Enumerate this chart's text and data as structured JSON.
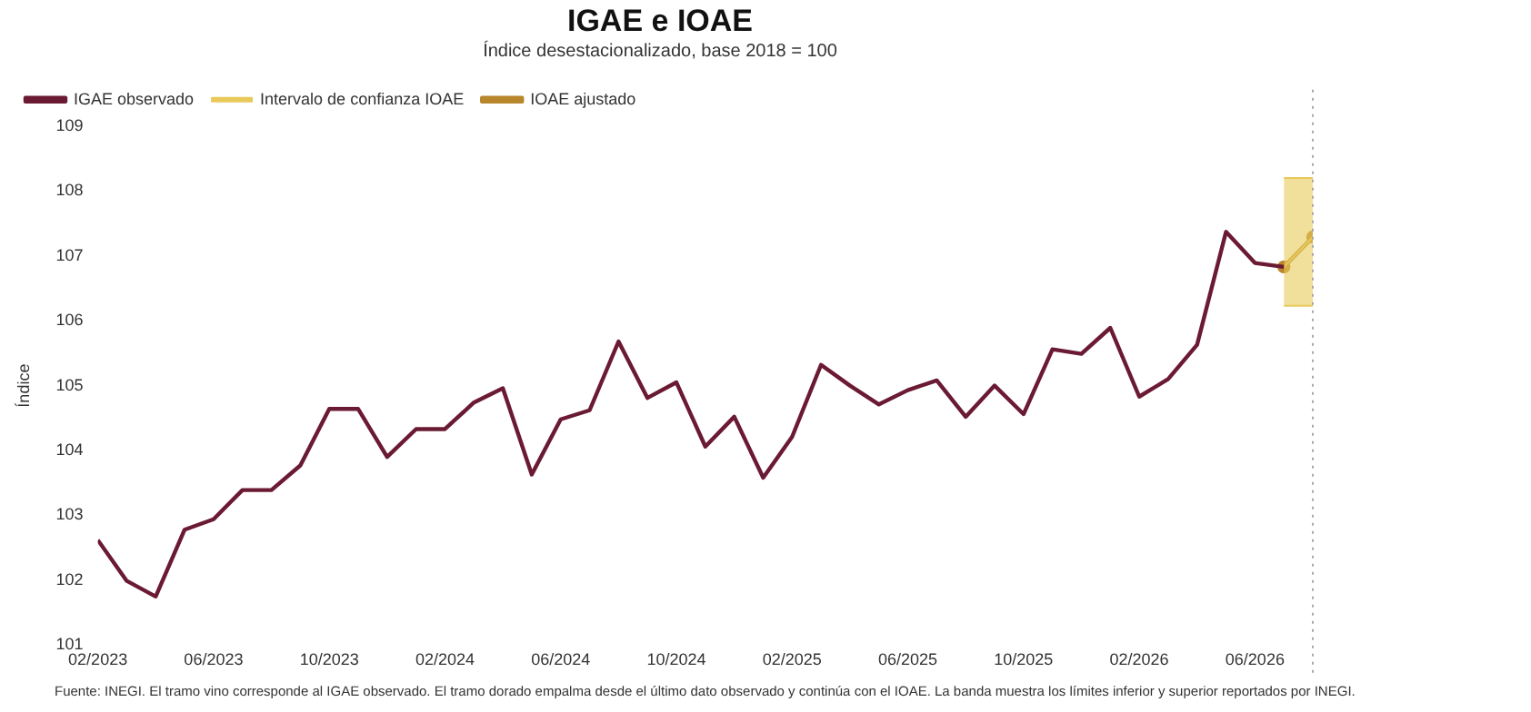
{
  "chart_data": {
    "type": "line",
    "title": "IGAE e IOAE",
    "subtitle": "Índice desestacionalizado, base 2018 = 100",
    "ylabel": "Índice",
    "x": [
      "2023-02",
      "2023-03",
      "2023-04",
      "2023-05",
      "2023-06",
      "2023-07",
      "2023-08",
      "2023-09",
      "2023-10",
      "2023-11",
      "2023-12",
      "2024-01",
      "2024-02",
      "2024-03",
      "2024-04",
      "2024-05",
      "2024-06",
      "2024-07",
      "2024-08",
      "2024-09",
      "2024-10",
      "2024-11",
      "2024-12",
      "2025-01",
      "2025-02",
      "2025-03",
      "2025-04",
      "2025-05",
      "2025-06",
      "2025-07",
      "2025-08",
      "2025-09",
      "2025-10",
      "2025-11",
      "2025-12",
      "2026-01",
      "2026-02",
      "2026-03",
      "2026-04",
      "2026-05",
      "2026-06",
      "2026-07"
    ],
    "series": [
      {
        "name": "IGAE observado",
        "color": "#6b1a33",
        "values": [
          102.62,
          101.99,
          101.75,
          102.78,
          102.94,
          103.39,
          103.39,
          103.77,
          104.64,
          104.64,
          103.9,
          104.33,
          104.33,
          104.74,
          104.96,
          103.63,
          104.48,
          104.62,
          105.68,
          104.81,
          105.05,
          104.06,
          104.52,
          103.58,
          104.21,
          105.32,
          105.0,
          104.71,
          104.93,
          105.08,
          104.52,
          105.0,
          104.56,
          105.56,
          105.49,
          105.89,
          104.83,
          105.1,
          105.63,
          107.37,
          106.89,
          106.83
        ]
      },
      {
        "name": "Intervalo de confianza IOAE",
        "type": "line",
        "color": "#e8c95a",
        "x": [
          "2026-07",
          "2026-08"
        ],
        "values": [
          106.83,
          107.29
        ],
        "lower": [
          106.23,
          106.23
        ],
        "upper": [
          108.2,
          108.2
        ]
      },
      {
        "name": "IOAE ajustado",
        "color": "#b8862b",
        "marker": "circle",
        "x": [
          "2026-07",
          "2026-08"
        ],
        "values": [
          106.83,
          107.29
        ]
      }
    ],
    "xlim": [
      "2023-02",
      "2026-08"
    ],
    "xticks": [
      {
        "value": "2023-02",
        "label": "02/2023"
      },
      {
        "value": "2023-06",
        "label": "06/2023"
      },
      {
        "value": "2023-10",
        "label": "10/2023"
      },
      {
        "value": "2024-02",
        "label": "02/2024"
      },
      {
        "value": "2024-06",
        "label": "06/2024"
      },
      {
        "value": "2024-10",
        "label": "10/2024"
      },
      {
        "value": "2025-02",
        "label": "02/2025"
      },
      {
        "value": "2025-06",
        "label": "06/2025"
      },
      {
        "value": "2025-10",
        "label": "10/2025"
      },
      {
        "value": "2026-02",
        "label": "02/2026"
      },
      {
        "value": "2026-06",
        "label": "06/2026"
      }
    ],
    "ylim": [
      101,
      109
    ],
    "yticks": [
      101,
      102,
      103,
      104,
      105,
      106,
      107,
      108,
      109
    ],
    "ref_lines": [
      {
        "axis": "x",
        "value": "2026-08",
        "color": "#aaaaaa",
        "line_style": "dotted"
      }
    ],
    "grid": false,
    "legend": "top left",
    "marker": "none",
    "line_style": "solid",
    "annotations": [
      "Fuente: INEGI. El tramo vino corresponde al IGAE observado. El tramo dorado empalma desde el último dato observado y continúa con el IOAE. La banda muestra los límites inferior y superior reportados por INEGI."
    ]
  }
}
